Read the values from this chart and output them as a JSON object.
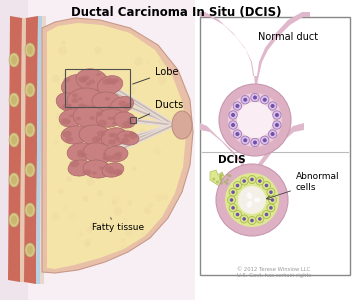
{
  "title": "Ductal Carcinoma In Situ (DCIS)",
  "title_fontsize": 8.5,
  "bg_color": "#ffffff",
  "label_lobe": "Lobe",
  "label_ducts": "Ducts",
  "label_fatty": "Fatty tissue",
  "label_normal_duct": "Normal duct",
  "label_dcis": "DCIS",
  "label_abnormal": "Abnormal\ncells",
  "copyright": "© 2012 Terese Winslow LLC\nU.S. Govt. has certain rights",
  "fatty_color": "#f5e4a8",
  "skin_outer_color": "#e8c0a8",
  "skin_mid_color": "#d4867a",
  "skin_light_color": "#e8c8b8",
  "fascia_color": "#c8dce8",
  "bg_pink": "#f5e8ec",
  "lobe_fill": "#c88888",
  "lobe_edge": "#b07070",
  "duct_line": "#d8c0b8",
  "nipple_color": "#d4a898",
  "inset_bg": "#ffffff",
  "inset_border": "#888888",
  "tube_pink": "#e8c0d0",
  "tube_pink_dark": "#d4a0b8",
  "nd_wall": "#e0b0c8",
  "nd_cell_ring": "#f0d0dc",
  "nd_lumen": "#f8eef4",
  "cell_body": "#d8c0e0",
  "cell_nucleus": "#7050a8",
  "dcis_wall": "#e0b0c8",
  "dcis_abnormal_fill": "#dce890",
  "dcis_lumen": "#f0ece8",
  "figsize": [
    3.53,
    3.0
  ],
  "dpi": 100
}
